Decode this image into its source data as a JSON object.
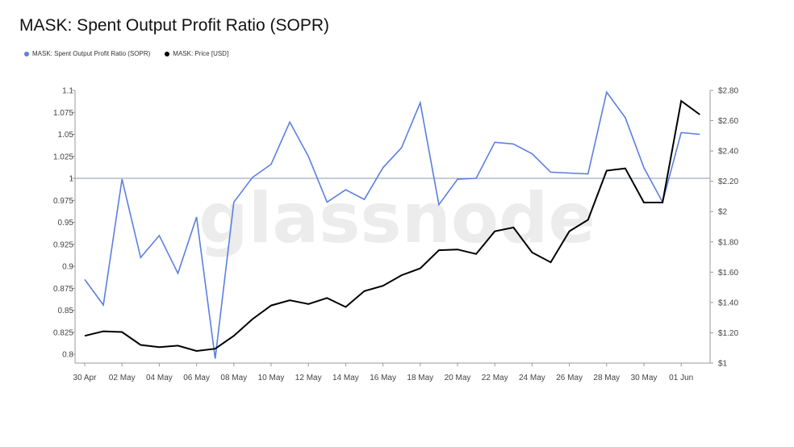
{
  "header": {
    "title": "MASK: Spent Output Profit Ratio (SOPR)"
  },
  "legend": [
    {
      "label": "MASK: Spent Output Profit Ratio (SOPR)",
      "color": "#5b7fe0"
    },
    {
      "label": "MASK: Price [USD]",
      "color": "#000000"
    }
  ],
  "watermark": "glassnode",
  "chart_data": {
    "type": "line",
    "x": [
      "30 Apr",
      "01 May",
      "02 May",
      "03 May",
      "04 May",
      "05 May",
      "06 May",
      "07 May",
      "08 May",
      "09 May",
      "10 May",
      "11 May",
      "12 May",
      "13 May",
      "14 May",
      "15 May",
      "16 May",
      "17 May",
      "18 May",
      "19 May",
      "20 May",
      "21 May",
      "22 May",
      "23 May",
      "24 May",
      "25 May",
      "26 May",
      "27 May",
      "28 May",
      "29 May",
      "30 May",
      "31 May",
      "01 Jun",
      "02 Jun"
    ],
    "x_tick_labels": [
      "30 Apr",
      "02 May",
      "04 May",
      "06 May",
      "08 May",
      "10 May",
      "12 May",
      "14 May",
      "16 May",
      "18 May",
      "20 May",
      "22 May",
      "24 May",
      "26 May",
      "28 May",
      "30 May",
      "01 Jun"
    ],
    "series": [
      {
        "name": "MASK: Spent Output Profit Ratio (SOPR)",
        "axis": "left",
        "color": "#5b7fe0",
        "values": [
          0.885,
          0.856,
          0.999,
          0.91,
          0.935,
          0.892,
          0.956,
          0.795,
          0.973,
          1.001,
          1.016,
          1.064,
          1.025,
          0.973,
          0.987,
          0.976,
          1.012,
          1.035,
          1.086,
          0.97,
          0.999,
          1.0,
          1.041,
          1.039,
          1.028,
          1.007,
          1.006,
          1.005,
          1.098,
          1.069,
          1.012,
          0.973,
          1.052,
          1.05
        ]
      },
      {
        "name": "MASK: Price [USD]",
        "axis": "right",
        "color": "#000000",
        "values": [
          1.18,
          1.21,
          1.205,
          1.12,
          1.105,
          1.115,
          1.08,
          1.095,
          1.18,
          1.29,
          1.38,
          1.415,
          1.39,
          1.43,
          1.37,
          1.475,
          1.51,
          1.58,
          1.625,
          1.745,
          1.75,
          1.72,
          1.87,
          1.895,
          1.73,
          1.665,
          1.87,
          1.945,
          2.27,
          2.285,
          2.06,
          2.06,
          2.73,
          2.64
        ]
      }
    ],
    "left_axis": {
      "ylim": [
        0.79,
        1.1
      ],
      "ticks": [
        "1.1",
        "1.075",
        "1.05",
        "1.025",
        "1",
        "0.975",
        "0.95",
        "0.925",
        "0.9",
        "0.875",
        "0.85",
        "0.825",
        "0.8"
      ]
    },
    "right_axis": {
      "ylim": [
        1.0,
        2.8
      ],
      "ticks": [
        "$2.80",
        "$2.60",
        "$2.40",
        "$2.20",
        "$2",
        "$1.80",
        "$1.60",
        "$1.40",
        "$1.20",
        "$1"
      ]
    },
    "reference_line": 1,
    "grid": false,
    "legend_position": "top-left"
  }
}
